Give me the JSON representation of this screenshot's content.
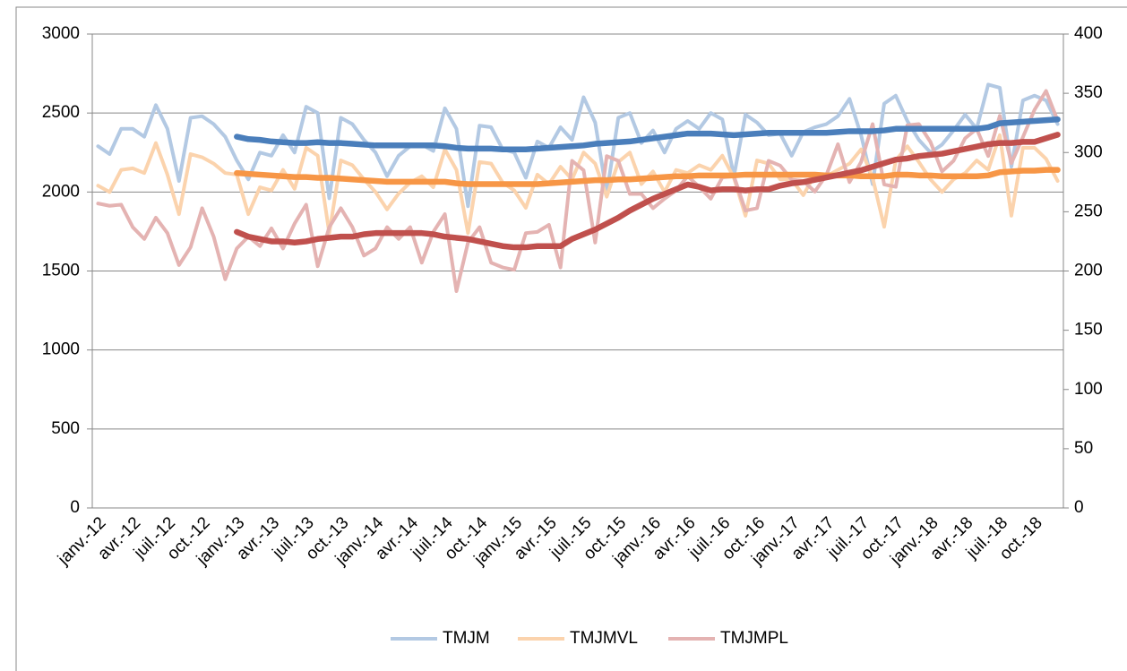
{
  "chart_data": {
    "type": "line",
    "categories": [
      "janv.-12",
      null,
      null,
      "avr.-12",
      null,
      null,
      "juil.-12",
      null,
      null,
      "oct.-12",
      null,
      null,
      "janv.-13",
      null,
      null,
      "avr.-13",
      null,
      null,
      "juil.-13",
      null,
      null,
      "oct.-13",
      null,
      null,
      "janv.-14",
      null,
      null,
      "avr.-14",
      null,
      null,
      "juil.-14",
      null,
      null,
      "oct.-14",
      null,
      null,
      "janv.-15",
      null,
      null,
      "avr.-15",
      null,
      null,
      "juil.-15",
      null,
      null,
      "oct.-15",
      null,
      null,
      "janv.-16",
      null,
      null,
      "avr.-16",
      null,
      null,
      "juil.-16",
      null,
      null,
      "oct.-16",
      null,
      null,
      "janv.-17",
      null,
      null,
      "avr.-17",
      null,
      null,
      "juil.-17",
      null,
      null,
      "oct.-17",
      null,
      null,
      "janv.-18",
      null,
      null,
      "avr.-18",
      null,
      null,
      "juil.-18",
      null,
      null,
      "oct.-18",
      null,
      null
    ],
    "series": [
      {
        "name": "TMJM",
        "color": "#b3c9e3",
        "values": [
          2290,
          2240,
          2400,
          2400,
          2350,
          2550,
          2400,
          2070,
          2470,
          2480,
          2430,
          2350,
          2200,
          2080,
          2250,
          2230,
          2360,
          2250,
          2540,
          2500,
          1960,
          2470,
          2430,
          2330,
          2250,
          2100,
          2230,
          2290,
          2300,
          2260,
          2530,
          2400,
          1910,
          2420,
          2410,
          2270,
          2250,
          2090,
          2320,
          2280,
          2410,
          2330,
          2600,
          2440,
          1990,
          2470,
          2500,
          2310,
          2390,
          2250,
          2400,
          2450,
          2400,
          2500,
          2460,
          2100,
          2490,
          2440,
          2360,
          2370,
          2230,
          2380,
          2410,
          2430,
          2480,
          2590,
          2360,
          2050,
          2560,
          2610,
          2450,
          2330,
          2250,
          2300,
          2390,
          2490,
          2400,
          2680,
          2660,
          2160,
          2580,
          2610,
          2580,
          2430
        ]
      },
      {
        "name": "TMJMVL",
        "color": "#fbd3ad",
        "values": [
          2040,
          2000,
          2140,
          2150,
          2120,
          2310,
          2110,
          1860,
          2240,
          2220,
          2180,
          2120,
          2110,
          1860,
          2030,
          2010,
          2140,
          2020,
          2280,
          2230,
          1740,
          2200,
          2170,
          2080,
          2000,
          1890,
          1990,
          2060,
          2100,
          2030,
          2270,
          2140,
          1740,
          2190,
          2180,
          2060,
          2010,
          1900,
          2110,
          2050,
          2160,
          2080,
          2250,
          2180,
          1970,
          2190,
          2250,
          2050,
          2130,
          2000,
          2140,
          2120,
          2170,
          2140,
          2230,
          2090,
          1850,
          2200,
          2180,
          2080,
          2080,
          1980,
          2110,
          2100,
          2140,
          2180,
          2270,
          2090,
          1780,
          2200,
          2290,
          2190,
          2080,
          2000,
          2080,
          2120,
          2200,
          2140,
          2360,
          1850,
          2280,
          2280,
          2210,
          2070
        ]
      },
      {
        "name": "TMJMPL",
        "color": "#e4b3b2",
        "axis": "y2",
        "values": [
          257,
          255,
          256,
          237,
          227,
          245,
          232,
          205,
          220,
          253,
          229,
          193,
          219,
          229,
          221,
          236,
          219,
          240,
          256,
          204,
          237,
          253,
          237,
          213,
          219,
          237,
          227,
          237,
          207,
          233,
          248,
          183,
          224,
          237,
          207,
          203,
          201,
          232,
          233,
          239,
          203,
          293,
          285,
          224,
          297,
          293,
          265,
          265,
          253,
          261,
          268,
          280,
          271,
          261,
          279,
          280,
          251,
          253,
          293,
          289,
          277,
          276,
          267,
          281,
          307,
          275,
          292,
          324,
          273,
          271,
          323,
          324,
          309,
          284,
          293,
          312,
          320,
          297,
          331,
          291,
          313,
          336,
          352,
          327
        ]
      },
      {
        "color": "#4a7ebb",
        "values": [
          null,
          null,
          null,
          null,
          null,
          null,
          null,
          null,
          null,
          null,
          null,
          null,
          2350,
          2335,
          2330,
          2320,
          2315,
          2310,
          2310,
          2315,
          2310,
          2310,
          2305,
          2300,
          2295,
          2295,
          2295,
          2295,
          2295,
          2295,
          2290,
          2280,
          2275,
          2275,
          2275,
          2270,
          2270,
          2270,
          2275,
          2280,
          2285,
          2290,
          2295,
          2305,
          2310,
          2315,
          2320,
          2330,
          2340,
          2350,
          2360,
          2370,
          2370,
          2370,
          2365,
          2360,
          2365,
          2370,
          2375,
          2375,
          2375,
          2375,
          2375,
          2375,
          2380,
          2385,
          2385,
          2385,
          2390,
          2400,
          2400,
          2400,
          2400,
          2400,
          2400,
          2400,
          2400,
          2410,
          2435,
          2440,
          2445,
          2450,
          2455,
          2460
        ]
      },
      {
        "color": "#f79646",
        "values": [
          null,
          null,
          null,
          null,
          null,
          null,
          null,
          null,
          null,
          null,
          null,
          null,
          2120,
          2115,
          2110,
          2105,
          2100,
          2095,
          2095,
          2090,
          2090,
          2085,
          2080,
          2075,
          2070,
          2065,
          2065,
          2065,
          2065,
          2065,
          2065,
          2055,
          2050,
          2050,
          2050,
          2050,
          2050,
          2050,
          2050,
          2055,
          2060,
          2065,
          2070,
          2075,
          2075,
          2080,
          2080,
          2085,
          2090,
          2095,
          2100,
          2100,
          2105,
          2105,
          2105,
          2105,
          2110,
          2110,
          2110,
          2110,
          2110,
          2110,
          2110,
          2105,
          2105,
          2105,
          2100,
          2100,
          2100,
          2110,
          2110,
          2105,
          2105,
          2100,
          2100,
          2100,
          2100,
          2105,
          2125,
          2130,
          2135,
          2135,
          2140,
          2140
        ]
      },
      {
        "color": "#c0504d",
        "axis": "y2",
        "values": [
          null,
          null,
          null,
          null,
          null,
          null,
          null,
          null,
          null,
          null,
          null,
          null,
          233,
          229,
          227,
          225,
          225,
          224,
          225,
          227,
          228,
          229,
          229,
          231,
          232,
          232,
          232,
          232,
          232,
          231,
          229,
          228,
          227,
          225,
          223,
          221,
          220,
          220,
          221,
          221,
          221,
          227,
          231,
          235,
          240,
          245,
          251,
          256,
          261,
          265,
          269,
          273,
          271,
          268,
          269,
          269,
          268,
          269,
          269,
          272,
          274,
          275,
          277,
          279,
          281,
          283,
          285,
          288,
          291,
          294,
          295,
          297,
          298,
          299,
          301,
          303,
          305,
          307,
          308,
          308,
          309,
          309,
          312,
          315
        ]
      }
    ],
    "ylim": [
      0,
      3000
    ],
    "yticks": [
      0,
      500,
      1000,
      1500,
      2000,
      2500,
      3000
    ],
    "y2lim": [
      0,
      400
    ],
    "y2ticks": [
      0,
      50,
      100,
      150,
      200,
      250,
      300,
      350,
      400
    ],
    "grid": true,
    "legend": "bottom"
  }
}
